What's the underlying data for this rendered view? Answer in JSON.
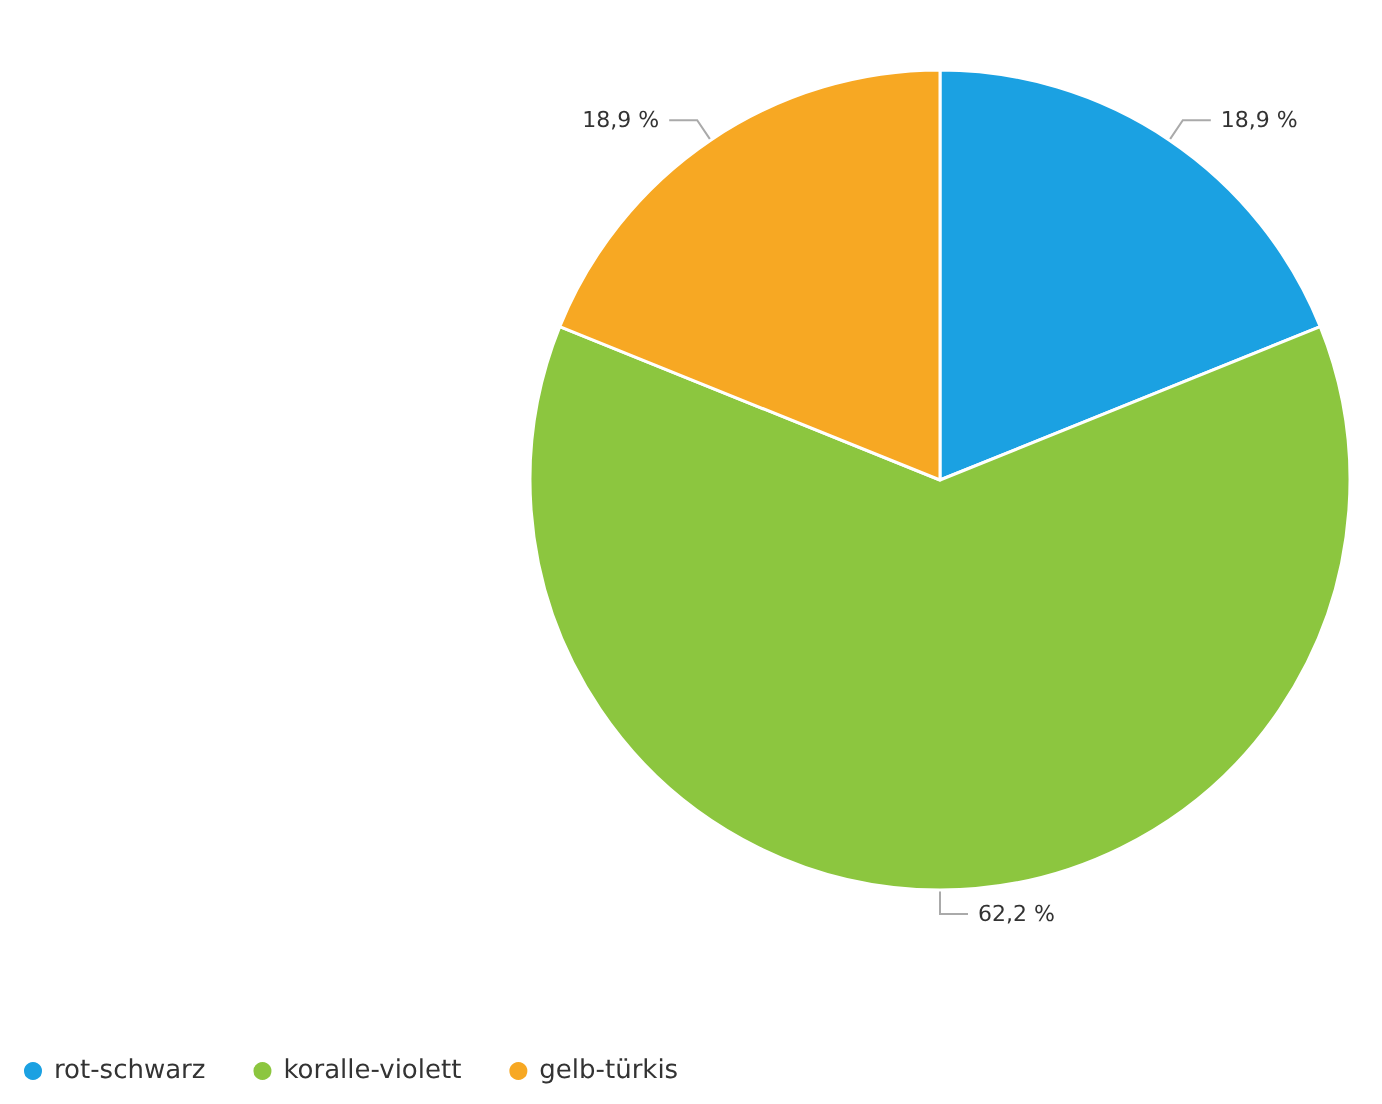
{
  "chart_data": {
    "type": "pie",
    "categories": [
      "rot-schwarz",
      "koralle-violett",
      "gelb-türkis"
    ],
    "values": [
      18.9,
      62.2,
      18.9
    ],
    "colors": [
      "#1ba1e2",
      "#8cc63f",
      "#f7a823"
    ],
    "value_labels": [
      "18,9 %",
      "62,2 %",
      "18,9 %"
    ],
    "legend": "bottom left"
  }
}
